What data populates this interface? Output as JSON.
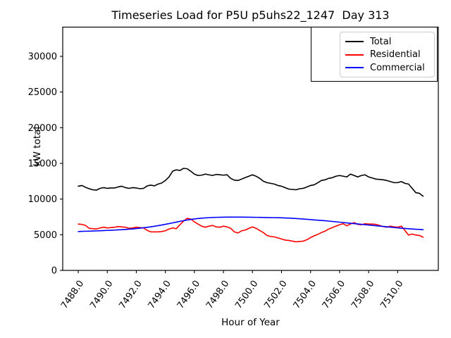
{
  "chart_data": {
    "type": "line",
    "title": "Timeseries Load for P5U p5uhs22_1247  Day 313",
    "xlabel": "Hour of Year",
    "ylabel": "kW total",
    "x_start": 7488.0,
    "x_step": 0.25,
    "n_points": 96,
    "xlim": [
      7486.93,
      7512.8
    ],
    "ylim": [
      0,
      34100
    ],
    "xticks": [
      7488,
      7490,
      7492,
      7494,
      7496,
      7498,
      7500,
      7502,
      7504,
      7506,
      7508,
      7510
    ],
    "xtick_labels": [
      "7488.0",
      "7490.0",
      "7492.0",
      "7494.0",
      "7496.0",
      "7498.0",
      "7500.0",
      "7502.0",
      "7504.0",
      "7506.0",
      "7508.0",
      "7510.0"
    ],
    "yticks": [
      0,
      5000,
      10000,
      15000,
      20000,
      25000,
      30000
    ],
    "ytick_labels": [
      "0",
      "5000",
      "10000",
      "15000",
      "20000",
      "25000",
      "30000"
    ],
    "grid": false,
    "legend_position": "upper right",
    "series": [
      {
        "name": "Total",
        "color": "#000000",
        "values": [
          11800,
          11900,
          11650,
          11450,
          11300,
          11250,
          11500,
          11600,
          11500,
          11550,
          11550,
          11700,
          11800,
          11600,
          11500,
          11600,
          11550,
          11450,
          11500,
          11850,
          11950,
          11850,
          12100,
          12250,
          12600,
          13100,
          13900,
          14100,
          14000,
          14300,
          14250,
          13900,
          13500,
          13300,
          13350,
          13500,
          13400,
          13300,
          13450,
          13400,
          13350,
          13400,
          12900,
          12650,
          12600,
          12800,
          13000,
          13200,
          13400,
          13200,
          12900,
          12500,
          12300,
          12200,
          12100,
          11900,
          11800,
          11600,
          11400,
          11350,
          11300,
          11450,
          11500,
          11700,
          11900,
          12000,
          12300,
          12600,
          12700,
          12900,
          13000,
          13200,
          13300,
          13200,
          13100,
          13500,
          13300,
          13100,
          13300,
          13400,
          13100,
          12950,
          12800,
          12750,
          12700,
          12600,
          12450,
          12300,
          12300,
          12450,
          12200,
          12100,
          11500,
          10900,
          10800,
          10400
        ]
      },
      {
        "name": "Residential",
        "color": "#ff0000",
        "values": [
          6500,
          6450,
          6300,
          5900,
          5850,
          5800,
          5950,
          6050,
          5950,
          6000,
          6050,
          6150,
          6100,
          6050,
          5900,
          5950,
          6050,
          6000,
          5950,
          5600,
          5400,
          5400,
          5400,
          5450,
          5550,
          5800,
          5950,
          5850,
          6400,
          6900,
          7300,
          7200,
          6800,
          6500,
          6200,
          6050,
          6200,
          6300,
          6100,
          6050,
          6200,
          6100,
          5900,
          5400,
          5250,
          5550,
          5650,
          5900,
          6100,
          5900,
          5600,
          5300,
          4900,
          4750,
          4700,
          4550,
          4400,
          4250,
          4200,
          4100,
          4000,
          4050,
          4100,
          4300,
          4600,
          4850,
          5050,
          5300,
          5500,
          5800,
          6000,
          6200,
          6400,
          6550,
          6250,
          6500,
          6700,
          6450,
          6400,
          6550,
          6500,
          6500,
          6450,
          6300,
          6150,
          6050,
          6200,
          6100,
          6050,
          6200,
          5600,
          4950,
          5100,
          4950,
          4900,
          4650
        ]
      },
      {
        "name": "Commercial",
        "color": "#0000ff",
        "values": [
          5450,
          5470,
          5490,
          5500,
          5520,
          5540,
          5560,
          5580,
          5600,
          5620,
          5650,
          5680,
          5710,
          5740,
          5780,
          5820,
          5870,
          5920,
          5980,
          6040,
          6110,
          6190,
          6270,
          6360,
          6460,
          6560,
          6660,
          6770,
          6870,
          6970,
          7060,
          7140,
          7210,
          7270,
          7320,
          7360,
          7390,
          7420,
          7440,
          7450,
          7460,
          7470,
          7470,
          7470,
          7470,
          7470,
          7460,
          7460,
          7450,
          7440,
          7430,
          7420,
          7410,
          7400,
          7390,
          7380,
          7370,
          7350,
          7330,
          7300,
          7270,
          7240,
          7200,
          7160,
          7120,
          7080,
          7040,
          7000,
          6960,
          6910,
          6860,
          6810,
          6760,
          6710,
          6660,
          6610,
          6560,
          6510,
          6460,
          6410,
          6360,
          6310,
          6260,
          6210,
          6160,
          6110,
          6060,
          6010,
          5960,
          5920,
          5880,
          5840,
          5800,
          5770,
          5740,
          5710
        ]
      }
    ]
  }
}
